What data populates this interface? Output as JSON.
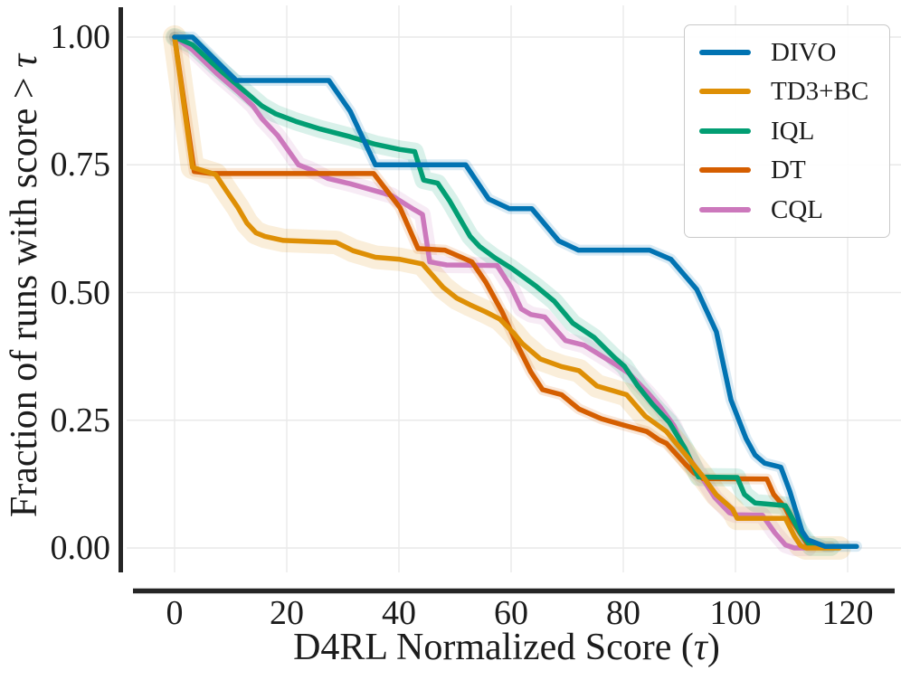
{
  "chart_data": {
    "type": "line",
    "subtype": "performance_profile_with_confidence_bands",
    "title": "",
    "x_axis": {
      "full_label": "D4RL Normalized Score (τ)",
      "label_prefix": "D4RL Normalized Score (",
      "label_tau": "τ",
      "label_suffix": ")",
      "ticks": [
        "0",
        "20",
        "40",
        "60",
        "80",
        "100",
        "120"
      ],
      "tick_values": [
        0,
        20,
        40,
        60,
        80,
        100,
        120
      ],
      "range": [
        0,
        129
      ]
    },
    "y_axis": {
      "full_label": "Fraction of runs with score > τ",
      "label_prefix": "Fraction of runs with score > ",
      "label_tau": "τ",
      "ticks": [
        "0.00",
        "0.25",
        "0.50",
        "0.75",
        "1.00"
      ],
      "tick_values": [
        0,
        0.25,
        0.5,
        0.75,
        1.0
      ],
      "range": [
        0,
        1.0
      ]
    },
    "grid": true,
    "grid_color": "#e9e9e9",
    "spine_color": "#262626",
    "background": "#ffffff",
    "legend": {
      "position": "upper-right",
      "entries": [
        {
          "label": "DIVO",
          "color": "#0173b2"
        },
        {
          "label": "TD3+BC",
          "color": "#de8f05"
        },
        {
          "label": "IQL",
          "color": "#029e73"
        },
        {
          "label": "DT",
          "color": "#d55e00"
        },
        {
          "label": "CQL",
          "color": "#cc78bc"
        }
      ]
    },
    "series": [
      {
        "name": "DIVO",
        "color": "#0173b2",
        "band_width": 12,
        "points": [
          [
            0,
            1.0
          ],
          [
            3.2,
            1.0
          ],
          [
            11,
            0.915
          ],
          [
            27.5,
            0.915
          ],
          [
            31.3,
            0.855
          ],
          [
            35.8,
            0.75
          ],
          [
            51.9,
            0.75
          ],
          [
            56,
            0.683
          ],
          [
            59.7,
            0.664
          ],
          [
            63.7,
            0.664
          ],
          [
            68.5,
            0.601
          ],
          [
            72,
            0.583
          ],
          [
            84.7,
            0.583
          ],
          [
            88.5,
            0.565
          ],
          [
            93.1,
            0.506
          ],
          [
            96.6,
            0.423
          ],
          [
            99.2,
            0.29
          ],
          [
            101.9,
            0.214
          ],
          [
            103.5,
            0.182
          ],
          [
            105.2,
            0.166
          ],
          [
            108.1,
            0.158
          ],
          [
            109.7,
            0.111
          ],
          [
            111.9,
            0.032
          ],
          [
            112.9,
            0.016
          ],
          [
            116,
            0.003
          ],
          [
            121.6,
            0.003
          ]
        ]
      },
      {
        "name": "TD3+BC",
        "color": "#de8f05",
        "band_width": 26,
        "points": [
          [
            0,
            1.0
          ],
          [
            3.2,
            0.745
          ],
          [
            7.3,
            0.731
          ],
          [
            9.2,
            0.7
          ],
          [
            11.3,
            0.666
          ],
          [
            12.9,
            0.636
          ],
          [
            14.5,
            0.617
          ],
          [
            16.1,
            0.61
          ],
          [
            19.4,
            0.602
          ],
          [
            28.8,
            0.598
          ],
          [
            31.8,
            0.582
          ],
          [
            35.8,
            0.569
          ],
          [
            40.2,
            0.565
          ],
          [
            44.2,
            0.556
          ],
          [
            47.9,
            0.51
          ],
          [
            50.3,
            0.489
          ],
          [
            52.7,
            0.476
          ],
          [
            55.5,
            0.462
          ],
          [
            58,
            0.448
          ],
          [
            60.5,
            0.42
          ],
          [
            62,
            0.4
          ],
          [
            65.2,
            0.37
          ],
          [
            69,
            0.355
          ],
          [
            72.1,
            0.347
          ],
          [
            75.3,
            0.317
          ],
          [
            80.6,
            0.3
          ],
          [
            83.9,
            0.258
          ],
          [
            87.7,
            0.228
          ],
          [
            91,
            0.184
          ],
          [
            94.2,
            0.14
          ],
          [
            96.6,
            0.104
          ],
          [
            99.5,
            0.076
          ],
          [
            100.3,
            0.058
          ],
          [
            108.9,
            0.058
          ],
          [
            110.5,
            0.023
          ],
          [
            111.6,
            0.005
          ],
          [
            112.6,
            0.0
          ],
          [
            118.5,
            0.0
          ]
        ]
      },
      {
        "name": "IQL",
        "color": "#029e73",
        "band_width": 20,
        "points": [
          [
            0,
            1.0
          ],
          [
            3.2,
            0.985
          ],
          [
            7.6,
            0.94
          ],
          [
            11.3,
            0.905
          ],
          [
            15.6,
            0.865
          ],
          [
            18,
            0.85
          ],
          [
            21.6,
            0.835
          ],
          [
            26,
            0.82
          ],
          [
            31.3,
            0.805
          ],
          [
            35.8,
            0.79
          ],
          [
            40.2,
            0.78
          ],
          [
            42.8,
            0.776
          ],
          [
            44.4,
            0.72
          ],
          [
            46.9,
            0.714
          ],
          [
            49,
            0.68
          ],
          [
            52.7,
            0.61
          ],
          [
            54.4,
            0.59
          ],
          [
            57.1,
            0.568
          ],
          [
            60,
            0.548
          ],
          [
            64.5,
            0.512
          ],
          [
            67.7,
            0.483
          ],
          [
            71,
            0.44
          ],
          [
            74.8,
            0.412
          ],
          [
            78.5,
            0.372
          ],
          [
            80.2,
            0.356
          ],
          [
            82.6,
            0.317
          ],
          [
            85.3,
            0.28
          ],
          [
            88.2,
            0.246
          ],
          [
            91,
            0.195
          ],
          [
            93.4,
            0.139
          ],
          [
            100.3,
            0.138
          ],
          [
            101.6,
            0.105
          ],
          [
            103.5,
            0.088
          ],
          [
            108.9,
            0.083
          ],
          [
            110.5,
            0.051
          ],
          [
            111.7,
            0.028
          ],
          [
            113.5,
            0.002
          ],
          [
            117,
            0.002
          ]
        ]
      },
      {
        "name": "DT",
        "color": "#d55e00",
        "band_width": 12,
        "points": [
          [
            0,
            1.0
          ],
          [
            3.5,
            0.737
          ],
          [
            6.5,
            0.733
          ],
          [
            35.5,
            0.733
          ],
          [
            40.2,
            0.666
          ],
          [
            43.4,
            0.586
          ],
          [
            48.2,
            0.583
          ],
          [
            53,
            0.56
          ],
          [
            55.5,
            0.52
          ],
          [
            58.4,
            0.462
          ],
          [
            61,
            0.4
          ],
          [
            63.5,
            0.345
          ],
          [
            65.6,
            0.31
          ],
          [
            69,
            0.3
          ],
          [
            72.1,
            0.272
          ],
          [
            76.1,
            0.253
          ],
          [
            80.2,
            0.24
          ],
          [
            84.2,
            0.228
          ],
          [
            86.3,
            0.212
          ],
          [
            87.7,
            0.205
          ],
          [
            91,
            0.165
          ],
          [
            92.6,
            0.147
          ],
          [
            94.2,
            0.136
          ],
          [
            105.6,
            0.135
          ],
          [
            106.8,
            0.105
          ],
          [
            108.9,
            0.078
          ],
          [
            109.8,
            0.058
          ],
          [
            111.6,
            0.028
          ],
          [
            113.2,
            0.002
          ],
          [
            117,
            0.002
          ]
        ]
      },
      {
        "name": "CQL",
        "color": "#cc78bc",
        "band_width": 18,
        "points": [
          [
            0,
            1.0
          ],
          [
            3.2,
            0.975
          ],
          [
            7.6,
            0.928
          ],
          [
            11.3,
            0.893
          ],
          [
            14,
            0.865
          ],
          [
            15.6,
            0.84
          ],
          [
            18.4,
            0.807
          ],
          [
            22.1,
            0.75
          ],
          [
            24.2,
            0.741
          ],
          [
            27.4,
            0.723
          ],
          [
            31.3,
            0.713
          ],
          [
            38.7,
            0.69
          ],
          [
            42.6,
            0.663
          ],
          [
            44.2,
            0.653
          ],
          [
            45.5,
            0.56
          ],
          [
            48.5,
            0.554
          ],
          [
            57.5,
            0.553
          ],
          [
            60,
            0.51
          ],
          [
            61.8,
            0.468
          ],
          [
            63.5,
            0.457
          ],
          [
            66,
            0.452
          ],
          [
            69.7,
            0.406
          ],
          [
            73,
            0.397
          ],
          [
            78.5,
            0.36
          ],
          [
            81,
            0.342
          ],
          [
            84.2,
            0.306
          ],
          [
            86.6,
            0.276
          ],
          [
            89,
            0.24
          ],
          [
            91,
            0.19
          ],
          [
            94.2,
            0.135
          ],
          [
            96.3,
            0.099
          ],
          [
            98.9,
            0.069
          ],
          [
            100,
            0.065
          ],
          [
            104.8,
            0.064
          ],
          [
            107,
            0.03
          ],
          [
            108.9,
            0.006
          ],
          [
            110.5,
            0.0
          ],
          [
            113,
            0.0
          ]
        ]
      }
    ]
  }
}
